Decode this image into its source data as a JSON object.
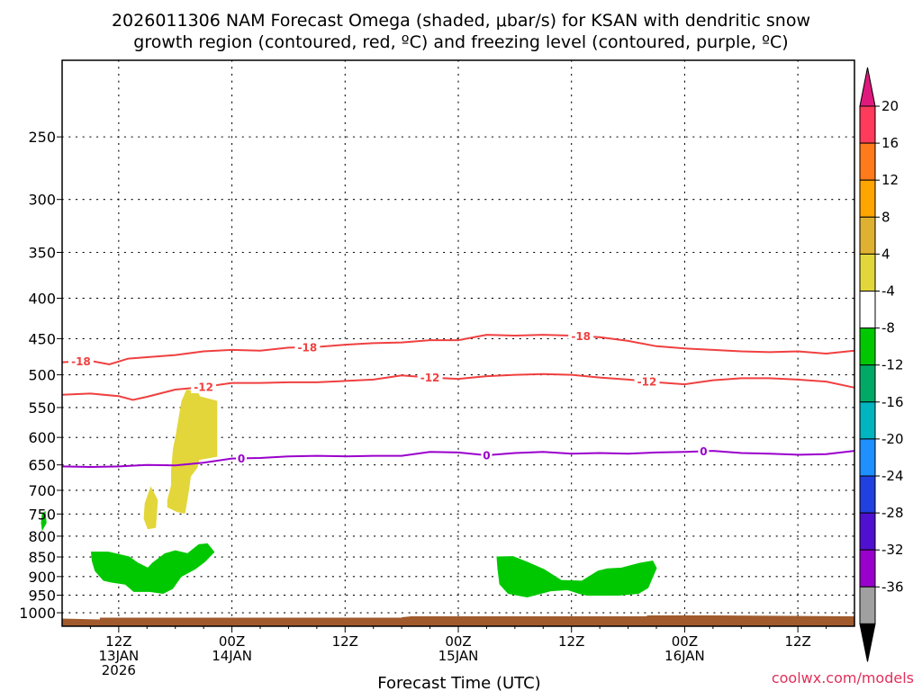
{
  "title_line1": "2026011306 NAM Forecast Omega (shaded, μbar/s) for KSAN with dendritic snow",
  "title_line2": "growth region (contoured, red, ºC) and freezing level (contoured, purple, ºC)",
  "xlabel": "Forecast Time (UTC)",
  "credit": "coolwx.com/models",
  "chart_data": {
    "type": "heatmap",
    "y_axis": {
      "scale": "log-pressure",
      "reversed": true,
      "range_mb": [
        1040,
        200
      ],
      "tick_labels": [
        "250",
        "300",
        "350",
        "400",
        "450",
        "500",
        "550",
        "600",
        "650",
        "700",
        "750",
        "800",
        "850",
        "900",
        "950",
        "1000"
      ],
      "tick_values": [
        250,
        300,
        350,
        400,
        450,
        500,
        550,
        600,
        650,
        700,
        750,
        800,
        850,
        900,
        950,
        1000
      ]
    },
    "x_axis": {
      "range_hours": [
        6,
        90
      ],
      "ticks": [
        {
          "hour": 12,
          "lines": [
            "12Z",
            "13JAN",
            "2026"
          ]
        },
        {
          "hour": 24,
          "lines": [
            "00Z",
            "14JAN"
          ]
        },
        {
          "hour": 36,
          "lines": [
            "12Z"
          ]
        },
        {
          "hour": 48,
          "lines": [
            "00Z",
            "15JAN"
          ]
        },
        {
          "hour": 60,
          "lines": [
            "12Z"
          ]
        },
        {
          "hour": 72,
          "lines": [
            "00Z",
            "16JAN"
          ]
        },
        {
          "hour": 84,
          "lines": [
            "12Z"
          ]
        }
      ],
      "dotted_grid": true
    },
    "colorbar": {
      "labels": [
        "20",
        "16",
        "12",
        "8",
        "4",
        "-4",
        "-8",
        "-12",
        "-16",
        "-20",
        "-24",
        "-28",
        "-32",
        "-36"
      ],
      "colors": [
        "#ff3a5a",
        "#ff7a1a",
        "#ffa500",
        "#e0b030",
        "#e3d63a",
        "#ffffff",
        "#00c800",
        "#00aa66",
        "#00b4c0",
        "#1e90ff",
        "#2040e0",
        "#5010d0",
        "#9a00cc",
        "#a0a0a0"
      ],
      "over_color": "#e0197d",
      "under_color": "#000000"
    },
    "contours": [
      {
        "label": "-18",
        "color": "#f04040",
        "points": [
          [
            6,
            482
          ],
          [
            9,
            480
          ],
          [
            11,
            485
          ],
          [
            13,
            477
          ],
          [
            15,
            475
          ],
          [
            18,
            472
          ],
          [
            21,
            467
          ],
          [
            24,
            465
          ],
          [
            27,
            466
          ],
          [
            30,
            462
          ],
          [
            33,
            461
          ],
          [
            36,
            458
          ],
          [
            39,
            456
          ],
          [
            42,
            455
          ],
          [
            45,
            452
          ],
          [
            48,
            452
          ],
          [
            51,
            445
          ],
          [
            54,
            446
          ],
          [
            57,
            445
          ],
          [
            60,
            446
          ],
          [
            63,
            448
          ],
          [
            66,
            453
          ],
          [
            69,
            460
          ],
          [
            72,
            463
          ],
          [
            75,
            465
          ],
          [
            78,
            467
          ],
          [
            81,
            468
          ],
          [
            84,
            467
          ],
          [
            87,
            470
          ],
          [
            90,
            466
          ]
        ],
        "label_hours": [
          8,
          32,
          61
        ]
      },
      {
        "label": "-12",
        "color": "#f04040",
        "points": [
          [
            6,
            530
          ],
          [
            9,
            528
          ],
          [
            12,
            532
          ],
          [
            13.5,
            538
          ],
          [
            15,
            533
          ],
          [
            18,
            522
          ],
          [
            21,
            518
          ],
          [
            24,
            512
          ],
          [
            27,
            512
          ],
          [
            30,
            511
          ],
          [
            33,
            511
          ],
          [
            36,
            509
          ],
          [
            39,
            507
          ],
          [
            42,
            501
          ],
          [
            45,
            504
          ],
          [
            48,
            506
          ],
          [
            51,
            502
          ],
          [
            54,
            500
          ],
          [
            57,
            499
          ],
          [
            60,
            500
          ],
          [
            63,
            504
          ],
          [
            66,
            507
          ],
          [
            69,
            511
          ],
          [
            72,
            514
          ],
          [
            75,
            508
          ],
          [
            78,
            505
          ],
          [
            81,
            505
          ],
          [
            84,
            507
          ],
          [
            87,
            510
          ],
          [
            90,
            519
          ]
        ],
        "label_hours": [
          21,
          45,
          68
        ]
      },
      {
        "label": "0",
        "color": "#9a00cc",
        "points": [
          [
            6,
            653
          ],
          [
            9,
            654
          ],
          [
            12,
            653
          ],
          [
            15,
            650
          ],
          [
            18,
            651
          ],
          [
            21,
            646
          ],
          [
            24,
            638
          ],
          [
            27,
            637
          ],
          [
            30,
            634
          ],
          [
            33,
            633
          ],
          [
            36,
            634
          ],
          [
            39,
            633
          ],
          [
            42,
            633
          ],
          [
            45,
            626
          ],
          [
            48,
            627
          ],
          [
            51,
            632
          ],
          [
            54,
            628
          ],
          [
            57,
            626
          ],
          [
            60,
            629
          ],
          [
            63,
            628
          ],
          [
            66,
            629
          ],
          [
            69,
            627
          ],
          [
            72,
            626
          ],
          [
            75,
            624
          ],
          [
            78,
            628
          ],
          [
            81,
            629
          ],
          [
            84,
            631
          ],
          [
            87,
            630
          ],
          [
            90,
            624
          ]
        ],
        "label_hours": [
          25,
          51,
          74
        ]
      }
    ],
    "shaded_regions": [
      {
        "value": 6,
        "color": "#e3d63a",
        "outline": [
          [
            18.7,
            540
          ],
          [
            19.2,
            523
          ],
          [
            20.3,
            525
          ],
          [
            20.6,
            533
          ],
          [
            22.4,
            540
          ],
          [
            22.4,
            634
          ],
          [
            20.5,
            640
          ],
          [
            20.3,
            655
          ],
          [
            19.6,
            672
          ],
          [
            19.4,
            700
          ],
          [
            19.0,
            748
          ],
          [
            18.2,
            745
          ],
          [
            17.2,
            735
          ],
          [
            17.2,
            720
          ],
          [
            17.6,
            690
          ],
          [
            17.6,
            660
          ],
          [
            17.8,
            620
          ],
          [
            18.1,
            595
          ]
        ]
      },
      {
        "value": 6,
        "color": "#e3d63a",
        "outline": [
          [
            14.8,
            727
          ],
          [
            15.4,
            694
          ],
          [
            16.1,
            720
          ],
          [
            15.9,
            780
          ],
          [
            15.1,
            783
          ],
          [
            14.7,
            760
          ]
        ]
      },
      {
        "value": -6,
        "color": "#00c800",
        "outline": [
          [
            9.1,
            838
          ],
          [
            10.9,
            838
          ],
          [
            13.1,
            850
          ],
          [
            14.0,
            865
          ],
          [
            15.1,
            878
          ],
          [
            15.6,
            865
          ],
          [
            16.9,
            842
          ],
          [
            18.0,
            835
          ],
          [
            19.3,
            842
          ],
          [
            20.5,
            820
          ],
          [
            21.4,
            818
          ],
          [
            22.1,
            838
          ],
          [
            21.1,
            862
          ],
          [
            20.1,
            880
          ],
          [
            18.6,
            900
          ],
          [
            17.7,
            932
          ],
          [
            16.7,
            945
          ],
          [
            15.3,
            940
          ],
          [
            13.6,
            940
          ],
          [
            12.7,
            920
          ],
          [
            11.3,
            915
          ],
          [
            10.4,
            910
          ],
          [
            9.5,
            885
          ],
          [
            9.2,
            860
          ]
        ]
      },
      {
        "value": -6,
        "color": "#00c800",
        "outline": [
          [
            4.2,
            745
          ],
          [
            4.3,
            770
          ],
          [
            3.9,
            785
          ],
          [
            3.8,
            770
          ],
          [
            3.9,
            750
          ]
        ]
      },
      {
        "value": -6,
        "color": "#00c800",
        "outline": [
          [
            52.1,
            850
          ],
          [
            53.8,
            849
          ],
          [
            55.3,
            863
          ],
          [
            57.1,
            882
          ],
          [
            58.9,
            910
          ],
          [
            61.1,
            912
          ],
          [
            62.8,
            886
          ],
          [
            63.8,
            880
          ],
          [
            65.3,
            878
          ],
          [
            67.2,
            866
          ],
          [
            68.6,
            860
          ],
          [
            69.0,
            878
          ],
          [
            68.1,
            930
          ],
          [
            67.1,
            945
          ],
          [
            65.0,
            950
          ],
          [
            61.6,
            950
          ],
          [
            60.8,
            945
          ],
          [
            59.6,
            935
          ],
          [
            57.8,
            938
          ],
          [
            55.3,
            955
          ],
          [
            53.3,
            945
          ],
          [
            52.4,
            920
          ],
          [
            52.2,
            880
          ]
        ]
      }
    ],
    "surface": {
      "color": "#a05a2c",
      "top_mb_left": 1017,
      "top_mb_right": 1013
    }
  }
}
